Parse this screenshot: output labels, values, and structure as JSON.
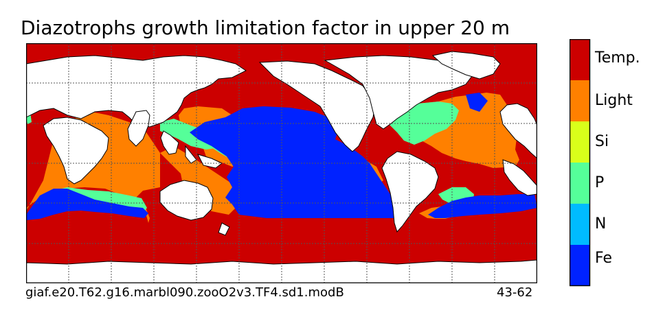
{
  "title": "Diazotrophs growth limitation factor in upper 20 m",
  "caption_left": "giaf.e20.T62.g16.marbl090.zooO2v3.TF4.sd1.modB",
  "caption_right": "43-62",
  "colors": {
    "temp": "#cc0000",
    "light": "#ff8000",
    "si": "#d9ff1a",
    "p": "#55ff99",
    "n": "#00bbff",
    "fe": "#0022ff",
    "land": "#ffffff",
    "coast": "#000000",
    "grid": "#555555"
  },
  "legend": [
    {
      "label": "Temp.",
      "color": "#cc0000"
    },
    {
      "label": "Light",
      "color": "#ff8000"
    },
    {
      "label": "Si",
      "color": "#d9ff1a"
    },
    {
      "label": "P",
      "color": "#55ff99"
    },
    {
      "label": "N",
      "color": "#00bbff"
    },
    {
      "label": "Fe",
      "color": "#0022ff"
    }
  ]
}
